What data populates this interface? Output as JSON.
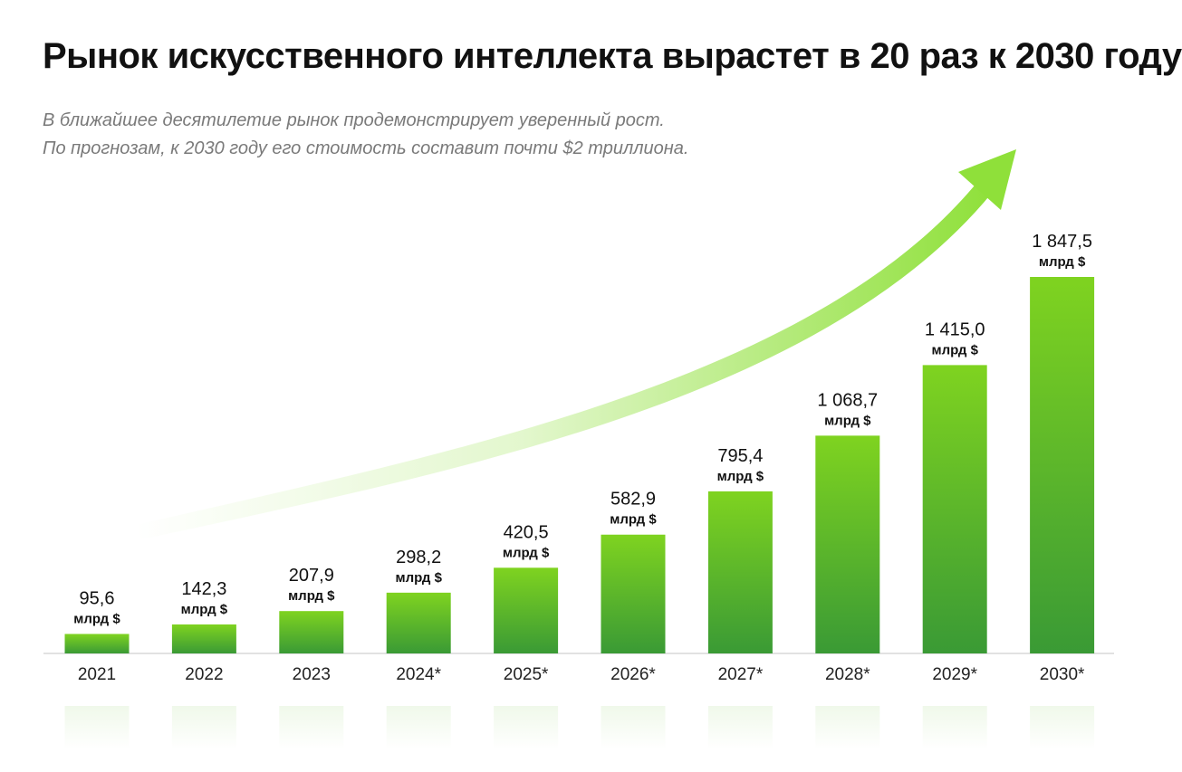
{
  "header": {
    "title": "Рынок искусственного интеллекта вырастет в 20 раз к 2030 году",
    "subtitle_lines": [
      "В ближайшее десятилетие рынок продемонстрирует уверенный рост.",
      "По прогнозам, к 2030 году его стоимость составит почти $2 триллиона."
    ]
  },
  "chart_data": {
    "type": "bar",
    "categories": [
      "2021",
      "2022",
      "2023",
      "2024*",
      "2025*",
      "2026*",
      "2027*",
      "2028*",
      "2029*",
      "2030*"
    ],
    "values": [
      95.6,
      142.3,
      207.9,
      298.2,
      420.5,
      582.9,
      795.4,
      1068.7,
      1415.0,
      1847.5
    ],
    "value_labels": [
      "95,6",
      "142,3",
      "207,9",
      "298,2",
      "420,5",
      "582,9",
      "795,4",
      "1 068,7",
      "1 415,0",
      "1 847,5"
    ],
    "unit_label": "млрд $",
    "title": "Рынок искусственного интеллекта вырастет в 20 раз к 2030 году",
    "ylim": [
      0,
      1900
    ],
    "grid": false,
    "colors": {
      "bar_top": "#7fd320",
      "bar_bottom": "#3a9a35",
      "arrow": "#8fe03a"
    }
  }
}
